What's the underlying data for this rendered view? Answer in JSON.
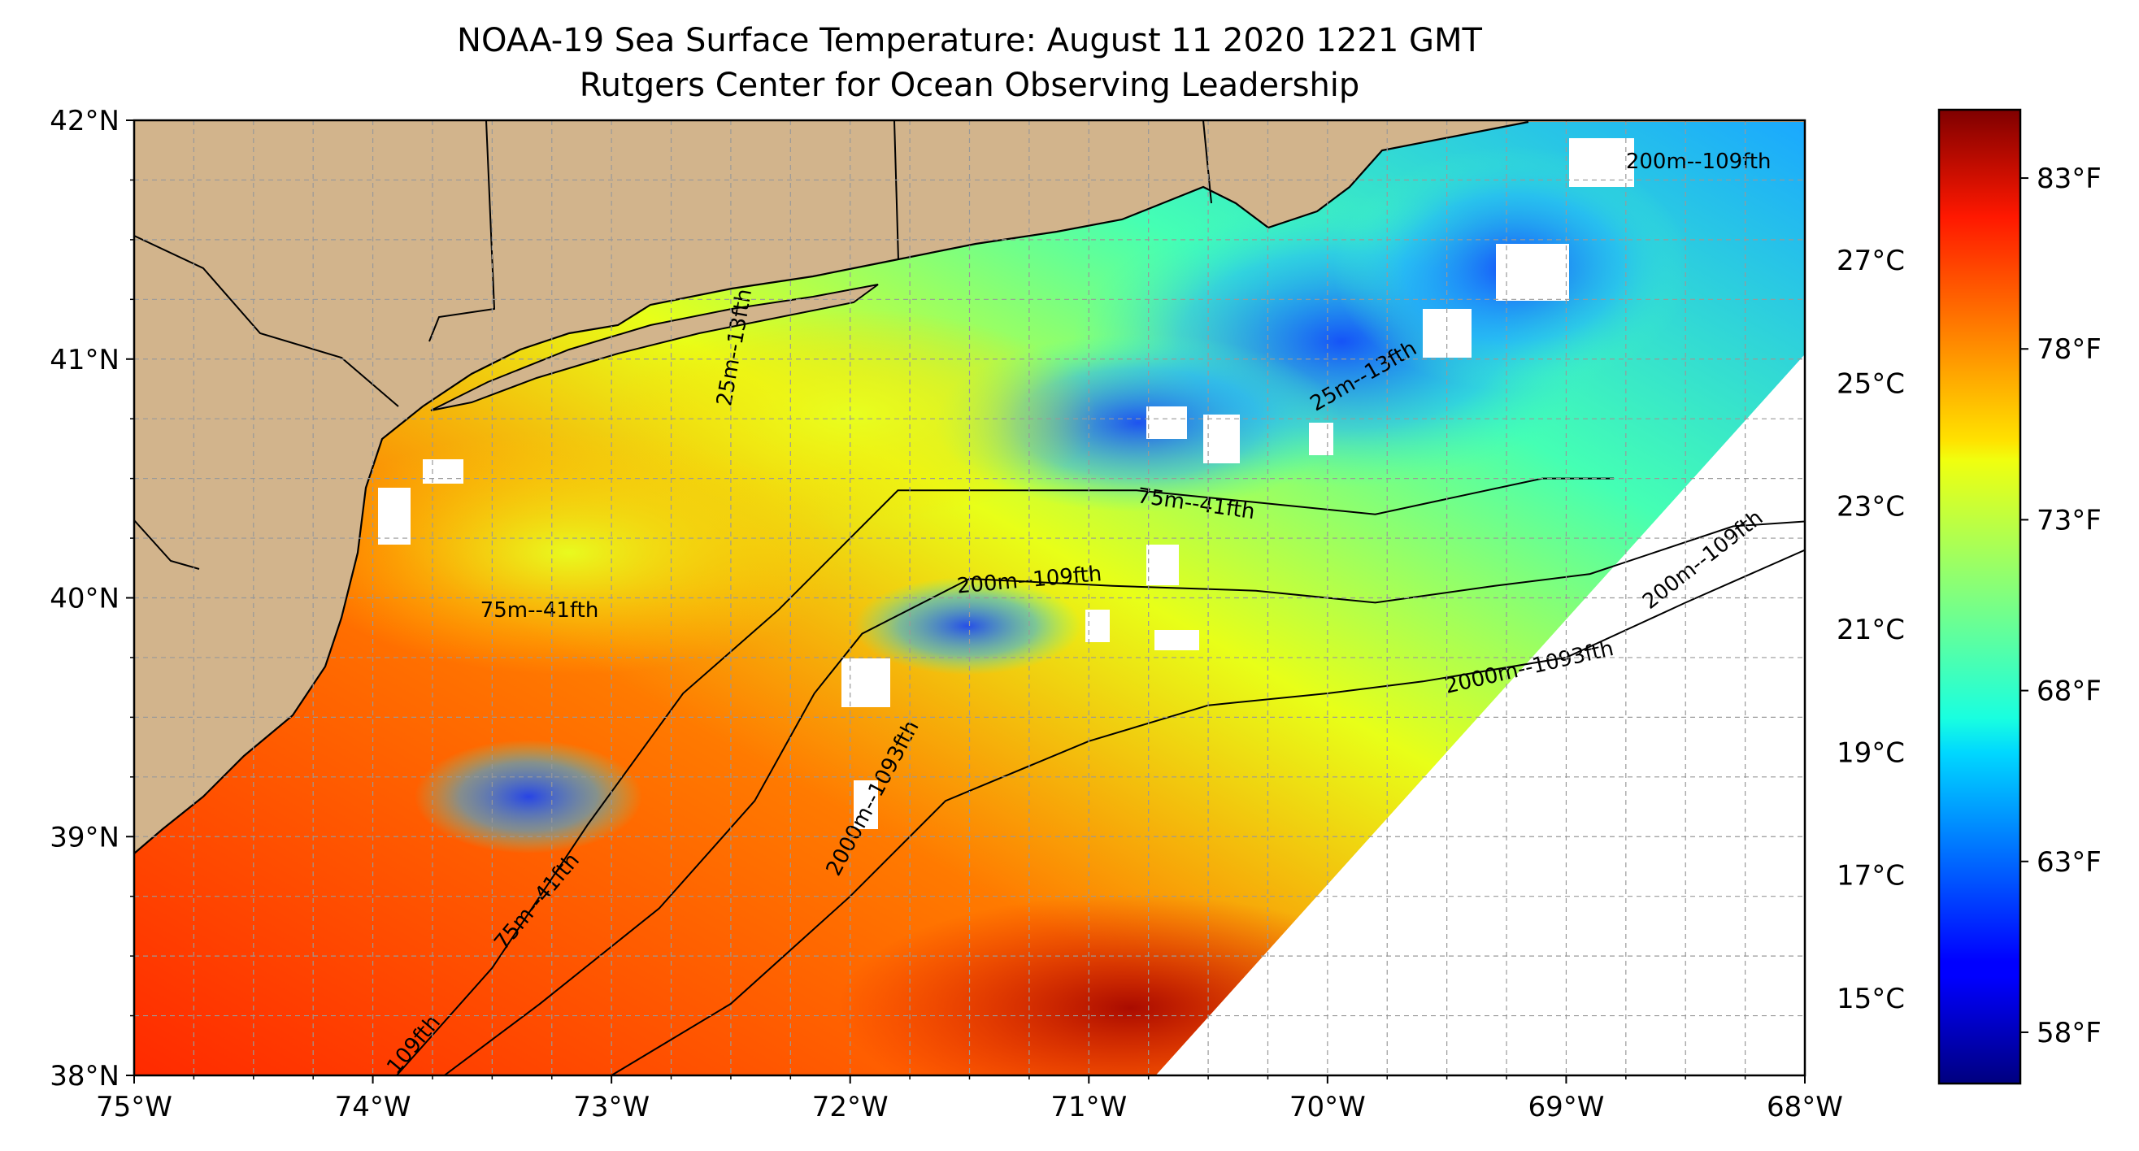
{
  "title": {
    "line1": "NOAA-19 Sea Surface Temperature: August 11 2020 1221 GMT",
    "line2": "Rutgers Center for Ocean Observing Leadership"
  },
  "map": {
    "lon_range": [
      -75,
      -68
    ],
    "lat_range": [
      38,
      42
    ],
    "x_ticks": [
      -75,
      -74,
      -73,
      -72,
      -71,
      -70,
      -69,
      -68
    ],
    "x_tick_labels": [
      "75°W",
      "74°W",
      "73°W",
      "72°W",
      "71°W",
      "70°W",
      "69°W",
      "68°W"
    ],
    "y_ticks": [
      38,
      39,
      40,
      41,
      42
    ],
    "y_tick_labels": [
      "38°N",
      "39°N",
      "40°N",
      "41°N",
      "42°N"
    ],
    "grid": true,
    "grid_spacing_deg": 0.25,
    "land_color": "#d2b48c",
    "missing_data_color": "#ffffff",
    "colormap": "jet",
    "swath_edge": [
      [
        -70.72,
        38.0
      ],
      [
        -68.0,
        41.02
      ]
    ],
    "contours": [
      {
        "label": "75m--41fth",
        "points": [
          [
            -73.9,
            38.0
          ],
          [
            -73.5,
            38.45
          ],
          [
            -73.1,
            39.05
          ],
          [
            -72.7,
            39.6
          ],
          [
            -72.3,
            39.95
          ],
          [
            -71.8,
            40.45
          ],
          [
            -71.35,
            40.45
          ],
          [
            -70.8,
            40.45
          ],
          [
            -70.3,
            40.4
          ],
          [
            -69.8,
            40.35
          ],
          [
            -69.1,
            40.5
          ],
          [
            -68.8,
            40.5
          ]
        ]
      },
      {
        "label": "200m--109fth",
        "points": [
          [
            -73.7,
            38.0
          ],
          [
            -73.3,
            38.3
          ],
          [
            -72.8,
            38.7
          ],
          [
            -72.4,
            39.15
          ],
          [
            -72.15,
            39.6
          ],
          [
            -71.95,
            39.85
          ],
          [
            -71.5,
            40.08
          ],
          [
            -70.9,
            40.05
          ],
          [
            -70.3,
            40.03
          ],
          [
            -69.8,
            39.98
          ],
          [
            -69.3,
            40.05
          ],
          [
            -68.9,
            40.1
          ],
          [
            -68.3,
            40.3
          ],
          [
            -68.0,
            40.32
          ]
        ]
      },
      {
        "label": "2000m--1093fth",
        "points": [
          [
            -73.0,
            38.0
          ],
          [
            -72.5,
            38.3
          ],
          [
            -72.0,
            38.75
          ],
          [
            -71.6,
            39.15
          ],
          [
            -71.0,
            39.4
          ],
          [
            -70.5,
            39.55
          ],
          [
            -70.0,
            39.6
          ],
          [
            -69.6,
            39.65
          ],
          [
            -69.0,
            39.75
          ],
          [
            -68.5,
            39.98
          ],
          [
            -68.0,
            40.2
          ]
        ]
      }
    ],
    "contour_labels": [
      {
        "text": "200m--109fth",
        "lon": -68.75,
        "lat": 41.8,
        "angle": 0
      },
      {
        "text": "200m--109fth",
        "lon": -71.55,
        "lat": 40.02,
        "angle": -5
      },
      {
        "text": "200m--109fth",
        "lon": -68.65,
        "lat": 39.95,
        "angle": -38
      },
      {
        "text": "75m--41fth",
        "lon": -73.55,
        "lat": 39.92,
        "angle": 0
      },
      {
        "text": "75m--41fth",
        "lon": -70.8,
        "lat": 40.4,
        "angle": 8
      },
      {
        "text": "2000m--1093fth",
        "lon": -69.5,
        "lat": 39.6,
        "angle": -13
      },
      {
        "text": "2000m--1093fth",
        "lon": -72.05,
        "lat": 38.83,
        "angle": -62
      },
      {
        "text": "75m--41fth",
        "lon": -73.45,
        "lat": 38.52,
        "angle": -50
      },
      {
        "text": "109fth",
        "lon": -73.9,
        "lat": 38.0,
        "angle": -50
      },
      {
        "text": "25m--13fth",
        "lon": -70.05,
        "lat": 40.78,
        "angle": -30
      },
      {
        "text": "25m--13fth",
        "lon": -72.5,
        "lat": 40.8,
        "angle": -80
      }
    ]
  },
  "colorbar": {
    "range_f": [
      56.5,
      85
    ],
    "f_ticks": [
      58,
      63,
      68,
      73,
      78,
      83
    ],
    "f_labels": [
      "58°F",
      "63°F",
      "68°F",
      "73°F",
      "78°F",
      "83°F"
    ],
    "c_ticks": [
      15,
      17,
      19,
      21,
      23,
      25,
      27
    ],
    "c_labels": [
      "15°C",
      "17°C",
      "19°C",
      "21°C",
      "23°C",
      "25°C",
      "27°C"
    ]
  }
}
